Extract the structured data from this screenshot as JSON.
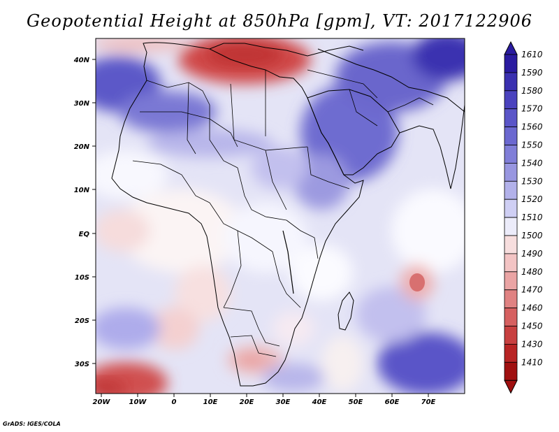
{
  "title": "Geopotential Height at 850hPa [gpm], VT: 2017122906",
  "credit": "GrADS: IGES/COLA",
  "map": {
    "lon_ticks": [
      "20W",
      "10W",
      "0",
      "10E",
      "20E",
      "30E",
      "40E",
      "50E",
      "60E",
      "70E"
    ],
    "lat_ticks": [
      "40N",
      "30N",
      "20N",
      "10N",
      "EQ",
      "10S",
      "20S",
      "30S"
    ],
    "region": "Africa, Arabia and western Indian Ocean"
  },
  "colorbar": {
    "levels": [
      "1610",
      "1590",
      "1580",
      "1570",
      "1560",
      "1550",
      "1540",
      "1530",
      "1520",
      "1510",
      "1500",
      "1490",
      "1480",
      "1470",
      "1460",
      "1450",
      "1430",
      "1410"
    ],
    "colors": [
      "#2a1ba0",
      "#3a30b0",
      "#4a42be",
      "#5a55c8",
      "#6b68d0",
      "#807ed8",
      "#9896e0",
      "#b2b1ea",
      "#cfcff4",
      "#ececfa",
      "#f7dede",
      "#f3c4c4",
      "#eaa4a4",
      "#e08282",
      "#d66060",
      "#c84040",
      "#b82424",
      "#a01010"
    ]
  }
}
